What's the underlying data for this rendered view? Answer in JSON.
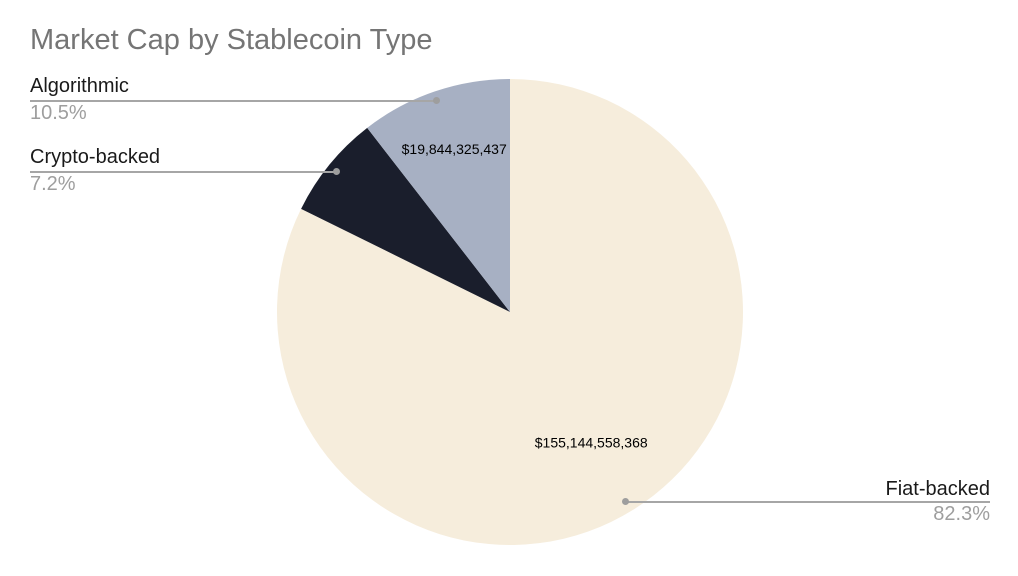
{
  "chart_data": {
    "type": "pie",
    "title": "Market Cap by Stablecoin Type",
    "legend_position": "outside-callouts",
    "start_angle_deg": 0,
    "direction": "clockwise",
    "slices": [
      {
        "label": "Fiat-backed",
        "percent": 82.3,
        "percent_label": "82.3%",
        "value": 155144558368,
        "value_label": "$155,144,558,368",
        "color": "#f6eddc"
      },
      {
        "label": "Crypto-backed",
        "percent": 7.2,
        "percent_label": "7.2%",
        "color": "#1a1e2c"
      },
      {
        "label": "Algorithmic",
        "percent": 10.5,
        "percent_label": "10.5%",
        "value": 19844325437,
        "value_label": "$19,844,325,437",
        "color": "#a7b0c3"
      }
    ],
    "colors": {
      "background": "#ffffff",
      "title_text": "#757575",
      "callout_label_text": "#1a1a1a",
      "callout_percent_text": "#9e9e9e",
      "leader_line": "#a6a6a6",
      "value_label_text": "#000000"
    }
  }
}
